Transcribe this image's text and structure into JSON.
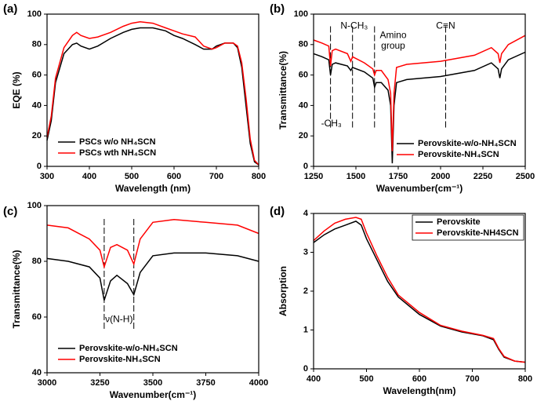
{
  "chart_data": [
    {
      "type": "line",
      "label": "(a)",
      "xlabel": "Wavelength (nm)",
      "ylabel": "EQE (%)",
      "xlim": [
        300,
        800
      ],
      "xticks": [
        300,
        400,
        500,
        600,
        700,
        800
      ],
      "ylim": [
        0,
        100
      ],
      "yticks": [
        0,
        20,
        40,
        60,
        80,
        100
      ],
      "legend": "lower left",
      "x": [
        300,
        310,
        320,
        340,
        360,
        370,
        380,
        400,
        420,
        450,
        480,
        500,
        520,
        550,
        580,
        600,
        620,
        650,
        670,
        690,
        700,
        720,
        740,
        750,
        760,
        770,
        780,
        790,
        800
      ],
      "series": [
        {
          "name": "PSCs w/o NH₄SCN",
          "color": "#000000",
          "values": [
            17,
            30,
            55,
            74,
            80,
            81,
            79,
            77,
            79,
            84,
            88,
            90,
            91,
            91,
            89,
            86,
            84,
            80,
            77,
            77,
            79,
            81,
            81,
            78,
            65,
            40,
            15,
            3,
            1
          ]
        },
        {
          "name": "PSCs wth NH₄SCN",
          "color": "#ff0000",
          "values": [
            19,
            33,
            58,
            78,
            86,
            88,
            86,
            84,
            85,
            88,
            92,
            94,
            95,
            94,
            91,
            89,
            87,
            85,
            79,
            77,
            78,
            81,
            81,
            79,
            68,
            45,
            18,
            4,
            1
          ]
        }
      ]
    },
    {
      "type": "line",
      "label": "(b)",
      "xlabel": "Wavenumber(cm⁻¹)",
      "ylabel": "Transmittance(%)",
      "xlim": [
        1250,
        2500
      ],
      "xticks": [
        1250,
        1500,
        1750,
        2000,
        2250,
        2500
      ],
      "ylim": [
        0,
        100
      ],
      "yticks": [
        0,
        20,
        40,
        60,
        80,
        100
      ],
      "legend": "lower right",
      "dashed_x": [
        1350,
        1480,
        1610,
        2030
      ],
      "annotations": [
        {
          "text": "-CH₃",
          "x": 1355,
          "y": 28
        },
        {
          "text": "N-CH₃",
          "x": 1490,
          "y": 92
        },
        {
          "text": "Amino",
          "x": 1720,
          "y": 86
        },
        {
          "text": "group",
          "x": 1720,
          "y": 79
        },
        {
          "text": "C≡N",
          "x": 2030,
          "y": 92
        }
      ],
      "x": [
        1250,
        1300,
        1340,
        1350,
        1360,
        1380,
        1450,
        1470,
        1480,
        1550,
        1600,
        1610,
        1620,
        1650,
        1690,
        1705,
        1715,
        1725,
        1740,
        1800,
        2000,
        2200,
        2300,
        2340,
        2350,
        2360,
        2400,
        2500
      ],
      "series": [
        {
          "name": "Perovskite-w/o-NH₄SCN",
          "color": "#000000",
          "values": [
            74,
            72,
            70,
            60,
            67,
            68,
            66,
            63,
            65,
            62,
            58,
            52,
            55,
            55,
            50,
            40,
            2,
            40,
            55,
            57,
            59,
            63,
            68,
            64,
            58,
            64,
            70,
            75
          ]
        },
        {
          "name": "Perovskite-NH₄SCN",
          "color": "#ff0000",
          "values": [
            83,
            81,
            79,
            66,
            76,
            77,
            74,
            69,
            72,
            68,
            64,
            60,
            63,
            63,
            57,
            48,
            10,
            48,
            65,
            67,
            69,
            73,
            78,
            74,
            68,
            74,
            80,
            86
          ]
        }
      ]
    },
    {
      "type": "line",
      "label": "(c)",
      "xlabel": "Wavenumber(cm⁻¹)",
      "ylabel": "Transmittance(%)",
      "xlim": [
        3000,
        4000
      ],
      "xticks": [
        3000,
        3250,
        3500,
        3750,
        4000
      ],
      "ylim": [
        40,
        100
      ],
      "yticks": [
        40,
        60,
        80,
        100
      ],
      "legend": "lower left",
      "dashed_x": [
        3270,
        3410
      ],
      "annotations": [
        {
          "text": "ν(N-H)",
          "x": 3340,
          "y": 59
        }
      ],
      "x": [
        3000,
        3100,
        3200,
        3250,
        3270,
        3300,
        3330,
        3380,
        3410,
        3440,
        3500,
        3600,
        3750,
        3900,
        4000
      ],
      "series": [
        {
          "name": "Perovskite-w/o-NH₄SCN",
          "color": "#000000",
          "values": [
            81,
            80,
            78,
            74,
            66,
            73,
            75,
            72,
            68,
            76,
            82,
            83,
            83,
            82,
            80
          ]
        },
        {
          "name": "Perovskite-NH₄SCN",
          "color": "#ff0000",
          "values": [
            93,
            92,
            88,
            84,
            78,
            85,
            86,
            84,
            79,
            88,
            94,
            95,
            94,
            93,
            90
          ]
        }
      ]
    },
    {
      "type": "line",
      "label": "(d)",
      "xlabel": "Wavelength(nm)",
      "ylabel": "Absorption",
      "xlim": [
        400,
        800
      ],
      "xticks": [
        400,
        500,
        600,
        700,
        800
      ],
      "ylim": [
        0,
        4
      ],
      "yticks": [
        0,
        1,
        2,
        3,
        4
      ],
      "legend": "upper right",
      "x": [
        400,
        420,
        440,
        460,
        480,
        490,
        500,
        520,
        540,
        560,
        600,
        640,
        680,
        720,
        740,
        750,
        760,
        780,
        800
      ],
      "series": [
        {
          "name": "Perovskite",
          "color": "#000000",
          "values": [
            3.25,
            3.45,
            3.6,
            3.7,
            3.8,
            3.7,
            3.35,
            2.8,
            2.25,
            1.85,
            1.4,
            1.1,
            0.95,
            0.85,
            0.75,
            0.5,
            0.3,
            0.2,
            0.17
          ]
        },
        {
          "name": "Perovskite-NH4SCN",
          "color": "#ff0000",
          "values": [
            3.3,
            3.55,
            3.75,
            3.85,
            3.9,
            3.85,
            3.5,
            2.9,
            2.35,
            1.9,
            1.45,
            1.12,
            0.97,
            0.86,
            0.78,
            0.52,
            0.32,
            0.2,
            0.17
          ]
        }
      ]
    }
  ]
}
